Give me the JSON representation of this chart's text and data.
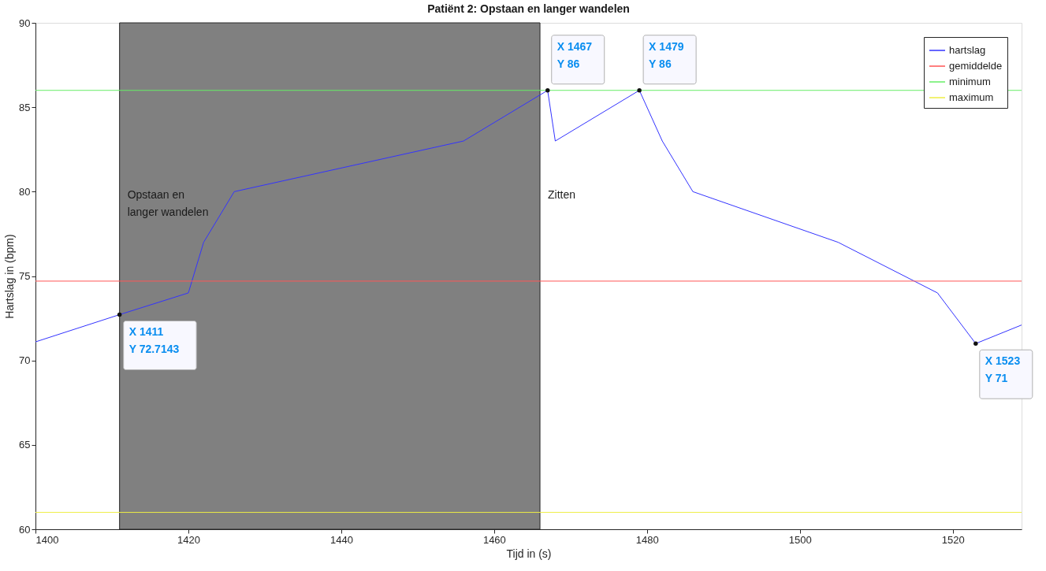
{
  "chart_data": {
    "type": "line",
    "title": "Patiënt 2: Opstaan en langer wandelen",
    "xlabel": "Tijd in (s)",
    "ylabel": "Hartslag in (bpm)",
    "xlim": [
      1400,
      1529
    ],
    "xticks": [
      1400,
      1420,
      1440,
      1460,
      1480,
      1500,
      1520
    ],
    "ylim": [
      60,
      90
    ],
    "yticks": [
      60,
      65,
      70,
      75,
      80,
      85,
      90
    ],
    "grid": false,
    "legend": "top right",
    "line_style": "solid",
    "marker": "none",
    "series": [
      {
        "name": "hartslag",
        "color": "#3333ff",
        "x": [
          1400,
          1411,
          1420,
          1422,
          1426,
          1456,
          1467,
          1468,
          1479,
          1482,
          1486,
          1505,
          1518,
          1523,
          1529
        ],
        "values": [
          71.1,
          72.7143,
          74,
          77,
          80,
          83,
          86,
          83,
          86,
          83,
          80,
          77,
          74,
          71,
          72.1
        ]
      },
      {
        "name": "gemiddelde",
        "color": "#ff5555",
        "x": [
          1400,
          1529
        ],
        "values": [
          74.7,
          74.7
        ]
      },
      {
        "name": "minimum",
        "color": "#66ee66",
        "x": [
          1400,
          1529
        ],
        "values": [
          86,
          86
        ]
      },
      {
        "name": "maximum",
        "color": "#eeee44",
        "x": [
          1400,
          1529
        ],
        "values": [
          61,
          61
        ]
      }
    ],
    "bands": [
      {
        "axis": "x",
        "from": 1411,
        "to": 1466,
        "label": "Opstaan en\nlanger wandelen",
        "color": "#808080"
      }
    ],
    "annotations": [
      {
        "text": "X 1411\nY 72.7143",
        "x": 1411,
        "y": 72.7143
      },
      {
        "text": "X 1467\nY 86",
        "x": 1467,
        "y": 86
      },
      {
        "text": "X 1479\nY 86",
        "x": 1479,
        "y": 86
      },
      {
        "text": "X 1523\nY 71",
        "x": 1523,
        "y": 71
      },
      "Zitten"
    ]
  }
}
